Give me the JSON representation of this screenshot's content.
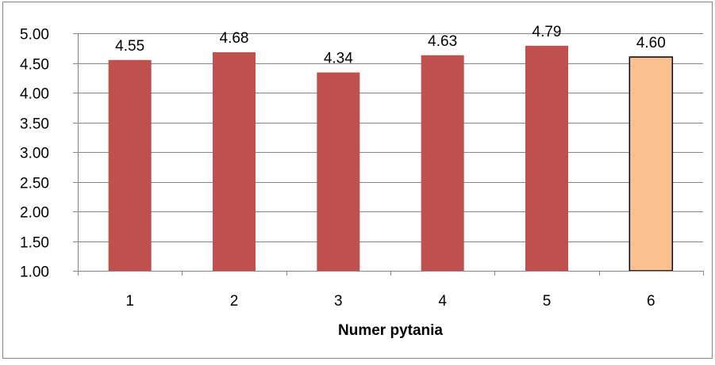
{
  "chart_data": {
    "type": "bar",
    "title": "",
    "xlabel": "Numer pytania",
    "ylabel": "",
    "categories": [
      "1",
      "2",
      "3",
      "4",
      "5",
      "6"
    ],
    "values": [
      4.55,
      4.68,
      4.34,
      4.63,
      4.79,
      4.6
    ],
    "data_labels": [
      "4.55",
      "4.68",
      "4.34",
      "4.63",
      "4.79",
      "4.60"
    ],
    "ylim": [
      1.0,
      5.0
    ],
    "y_ticks": [
      "1.00",
      "1.50",
      "2.00",
      "2.50",
      "3.00",
      "3.50",
      "4.00",
      "4.50",
      "5.00"
    ],
    "grid": true,
    "legend": "none",
    "colors": {
      "bar": "#C0504D",
      "highlight_bar": "#FAC090",
      "highlight_border": "#000000",
      "grid": "#868686",
      "axis": "#868686",
      "frame": "#868686",
      "text": "#000000"
    },
    "highlight_index": 5
  }
}
